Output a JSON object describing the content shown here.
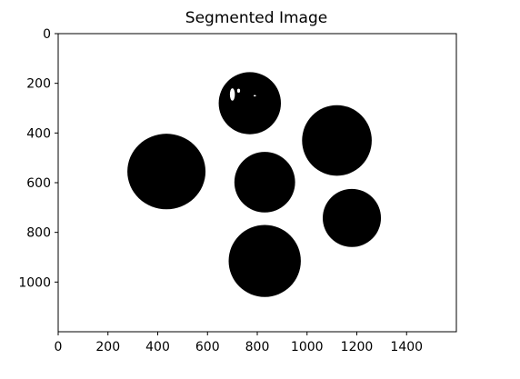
{
  "chart_data": {
    "type": "image",
    "title": "Segmented Image",
    "xlabel": "",
    "ylabel": "",
    "xlim": [
      0,
      1600
    ],
    "ylim": [
      1200,
      0
    ],
    "y_inverted": true,
    "grid": false,
    "x_ticks": [
      0,
      200,
      400,
      600,
      800,
      1000,
      1200,
      1400
    ],
    "y_ticks": [
      0,
      200,
      400,
      600,
      800,
      1000
    ],
    "background_color": "#ffffff",
    "foreground_color": "#000000",
    "regions": [
      {
        "cx": 435,
        "cy": 555,
        "rx": 157,
        "ry": 152
      },
      {
        "cx": 770,
        "cy": 280,
        "rx": 125,
        "ry": 125
      },
      {
        "cx": 830,
        "cy": 598,
        "rx": 122,
        "ry": 122
      },
      {
        "cx": 1120,
        "cy": 430,
        "rx": 140,
        "ry": 142
      },
      {
        "cx": 1180,
        "cy": 742,
        "rx": 117,
        "ry": 117
      },
      {
        "cx": 830,
        "cy": 915,
        "rx": 145,
        "ry": 145
      }
    ],
    "highlights": [
      {
        "cx": 700,
        "cy": 245,
        "rx": 10,
        "ry": 25
      },
      {
        "cx": 725,
        "cy": 230,
        "rx": 6,
        "ry": 8
      },
      {
        "cx": 790,
        "cy": 250,
        "rx": 5,
        "ry": 3
      }
    ]
  }
}
